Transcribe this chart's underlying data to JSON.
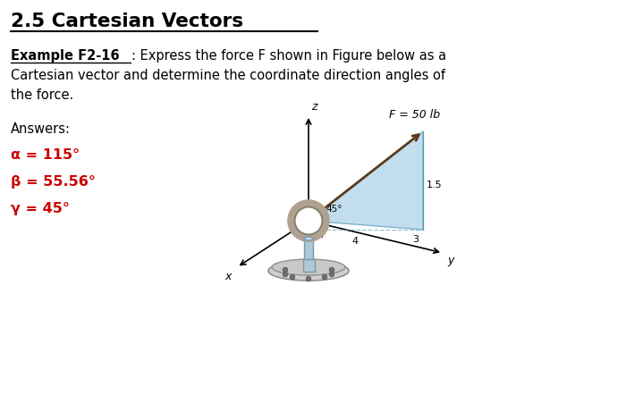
{
  "title": "2.5 Cartesian Vectors",
  "example_label": "Example F2-16",
  "problem_rest": ": Express the force F shown in Figure below as a",
  "problem_line2": "Cartesian vector and determine the coordinate direction angles of",
  "problem_line3": "the force.",
  "answers_label": "Answers:",
  "answer1": "α = 115°",
  "answer2": "β = 55.56°",
  "answer3": "γ = 45°",
  "answer_color": "#cc0000",
  "background_color": "#ffffff",
  "text_color": "#000000",
  "force_label": "F = 50 lb",
  "angle_label": "45°",
  "dim1": "4",
  "dim2": "3",
  "dim3": "1.5",
  "axis_x": "x",
  "axis_y": "y",
  "axis_z": "z"
}
